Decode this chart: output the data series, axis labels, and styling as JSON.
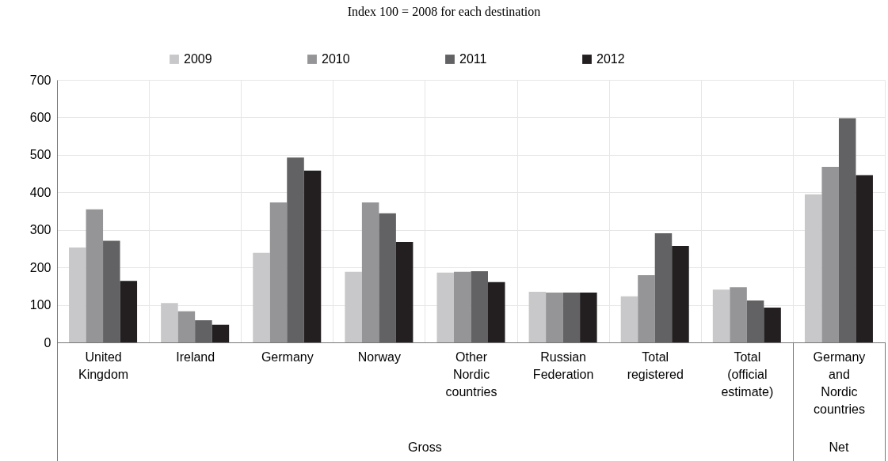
{
  "chart_data": {
    "type": "bar",
    "title": "Index 100 = 2008 for each destination",
    "categories": [
      "United Kingdom",
      "Ireland",
      "Germany",
      "Norway",
      "Other Nordic countries",
      "Russian Federation",
      "Total registered",
      "Total (official estimate)",
      "Germany and Nordic countries"
    ],
    "series": [
      {
        "name": "2009",
        "color": "#c8c8ca",
        "values": [
          253,
          105,
          239,
          188,
          186,
          135,
          123,
          141,
          395
        ]
      },
      {
        "name": "2010",
        "color": "#959598",
        "values": [
          355,
          83,
          373,
          373,
          188,
          133,
          179,
          147,
          468
        ]
      },
      {
        "name": "2011",
        "color": "#626264",
        "values": [
          271,
          59,
          493,
          344,
          190,
          133,
          291,
          112,
          598
        ]
      },
      {
        "name": "2012",
        "color": "#231f20",
        "values": [
          164,
          47,
          458,
          268,
          161,
          133,
          257,
          93,
          446
        ]
      }
    ],
    "ylim": [
      0,
      700
    ],
    "yticks": [
      0,
      100,
      200,
      300,
      400,
      500,
      600,
      700
    ],
    "grid": true,
    "legend": "top",
    "annotations": [
      "Gross",
      "Net"
    ]
  }
}
